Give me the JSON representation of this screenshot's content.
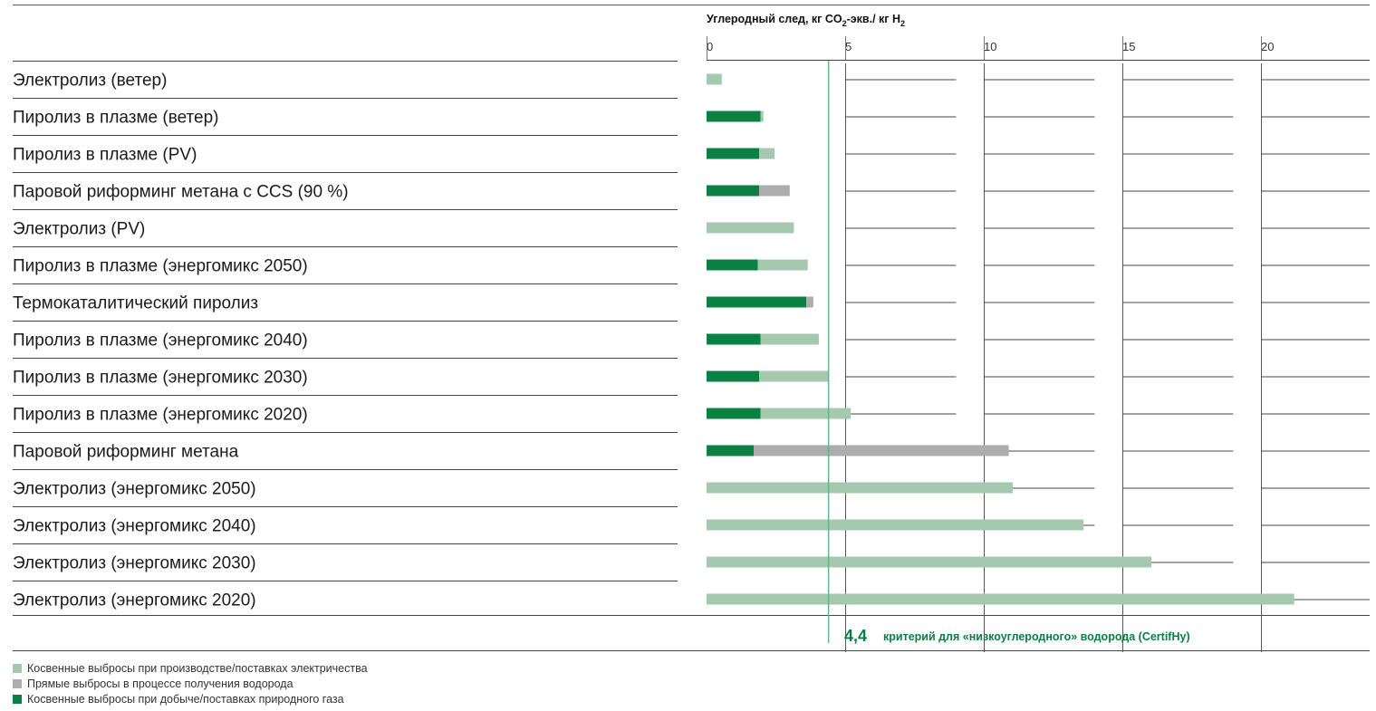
{
  "colors": {
    "indirect_electricity": "#a5c9ae",
    "direct_hydrogen": "#adadad",
    "indirect_gas": "#0b8043",
    "natural_gas_fossil_part": "#c8e2cd",
    "criterion_line": "#5fb88a",
    "criterion_text": "#0a7d43"
  },
  "chart_data": {
    "type": "bar",
    "orientation": "horizontal",
    "stacked": true,
    "title": "Углеродный след, кг CO2-экв./ кг H2",
    "title_parts": {
      "main": "Углеродный след, кг CO",
      "sub1": "2",
      "mid": "-экв./ кг H",
      "sub2": "2"
    },
    "xlim": [
      0,
      23.8
    ],
    "xticks": [
      0,
      5,
      10,
      15,
      20
    ],
    "xtick_labels": [
      "0",
      "5",
      "10",
      "15",
      "20"
    ],
    "grid": true,
    "legend_position": "bottom-left",
    "categories": [
      "Электролиз (ветер)",
      "Пиролиз в плазме (ветер)",
      "Пиролиз в плазме (PV)",
      "Паровой риформинг метана с CCS (90 %)",
      "Электролиз (PV)",
      "Пиролиз в плазме (энергомикс 2050)",
      "Термокаталитический пиролиз",
      "Пиролиз в плазме (энергомикс 2040)",
      "Пиролиз в плазме (энергомикс 2030)",
      "Пиролиз в плазме (энергомикс 2020)",
      "Паровой риформинг метана",
      "Электролиз (энергомикс 2050)",
      "Электролиз (энергомикс 2040)",
      "Электролиз (энергомикс 2030)",
      "Электролиз (энергомикс 2020)"
    ],
    "series": [
      {
        "name": "Косвенные выбросы при добыче/поставках природного газа",
        "color_key": "indirect_gas",
        "values": [
          0,
          1.95,
          1.9,
          1.9,
          0,
          1.85,
          3.6,
          1.95,
          1.9,
          1.95,
          1.7,
          0,
          0,
          0,
          0
        ]
      },
      {
        "name": "Прямые выбросы в процессе получения водорода",
        "color_key": "direct_hydrogen",
        "values": [
          0,
          0,
          0,
          1.1,
          0,
          0,
          0.25,
          0,
          0,
          0,
          9.2,
          0,
          0,
          0,
          0
        ]
      },
      {
        "name": "Косвенные выбросы при производстве/поставках электричества",
        "color_key": "indirect_electricity",
        "values": [
          0.55,
          0.1,
          0.55,
          0,
          3.15,
          1.8,
          0,
          2.1,
          2.5,
          3.25,
          0,
          11.05,
          13.6,
          16.05,
          21.2
        ]
      }
    ],
    "criterion": {
      "value": 4.4,
      "value_label": "4,4",
      "label": "критерий для «низкоуглеродного» водорода (CertifHy)"
    }
  },
  "legend": [
    {
      "label": "Косвенные выбросы при производстве/поставках электричества",
      "color_key": "indirect_electricity"
    },
    {
      "label": "Прямые выбросы в процессе получения водорода",
      "color_key": "direct_hydrogen"
    },
    {
      "label": "Косвенные выбросы при добыче/поставках природного газа",
      "color_key": "indirect_gas"
    }
  ]
}
